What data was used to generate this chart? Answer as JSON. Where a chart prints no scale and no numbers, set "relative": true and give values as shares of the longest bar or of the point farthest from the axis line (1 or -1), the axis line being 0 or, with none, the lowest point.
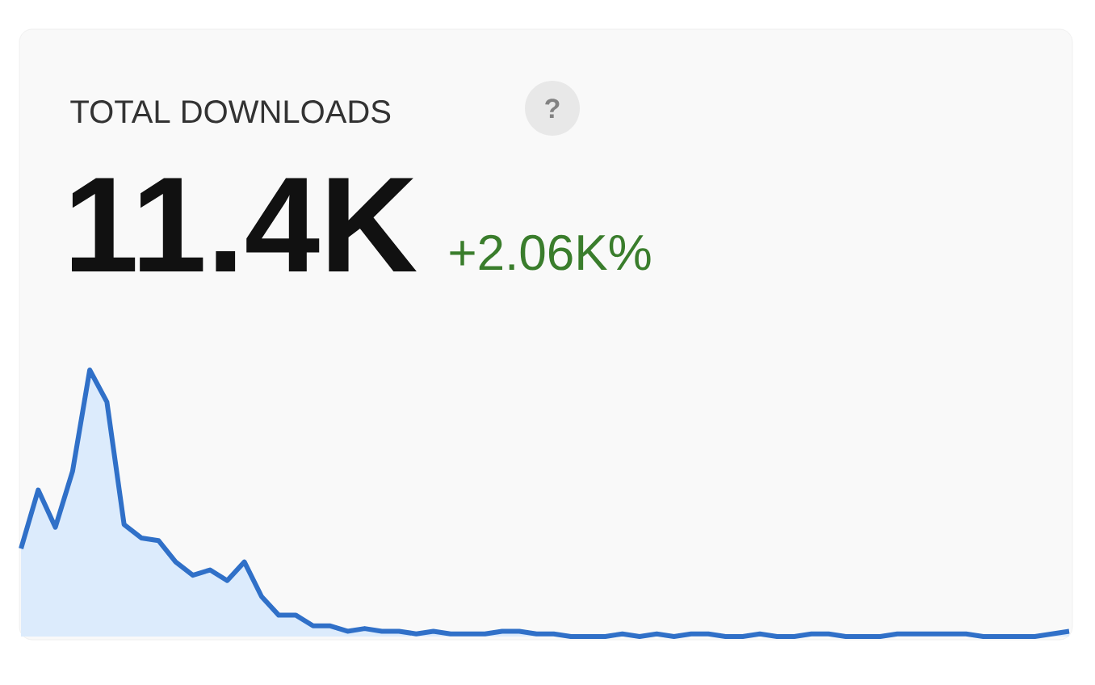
{
  "chart_data": {
    "type": "area",
    "title": "TOTAL DOWNLOADS",
    "relative": true,
    "color": "#3070c8",
    "annotations": [
      "?",
      "11.4K",
      "+2.06K%"
    ],
    "categories": [
      null,
      null,
      null,
      null,
      null,
      null,
      null,
      null,
      null,
      null,
      null,
      null,
      null,
      null,
      null,
      null,
      null,
      null,
      null,
      null,
      null,
      null,
      null,
      null,
      null,
      null,
      null,
      null,
      null,
      null,
      null,
      null,
      null,
      null,
      null,
      null,
      null,
      null,
      null,
      null,
      null,
      null,
      null,
      null,
      null,
      null,
      null,
      null,
      null,
      null,
      null,
      null,
      null,
      null,
      null,
      null,
      null,
      null,
      null,
      null,
      null,
      null
    ],
    "values": [
      0.33,
      0.55,
      0.41,
      0.62,
      1,
      0.88,
      0.42,
      0.37,
      0.36,
      0.28,
      0.23,
      0.25,
      0.21,
      0.28,
      0.15,
      0.08,
      0.08,
      0.04,
      0.04,
      0.02,
      0.03,
      0.02,
      0.02,
      0.01,
      0.02,
      0.01,
      0.01,
      0.01,
      0.02,
      0.02,
      0.01,
      0.01,
      0,
      0,
      0,
      0.01,
      0,
      0.01,
      0,
      0.01,
      0.01,
      0,
      0,
      0.01,
      0,
      0,
      0.01,
      0.01,
      0,
      0,
      0,
      0.01,
      0.01,
      0.01,
      0.01,
      0.01,
      0,
      0,
      0,
      0,
      0.01,
      0.02
    ]
  }
}
